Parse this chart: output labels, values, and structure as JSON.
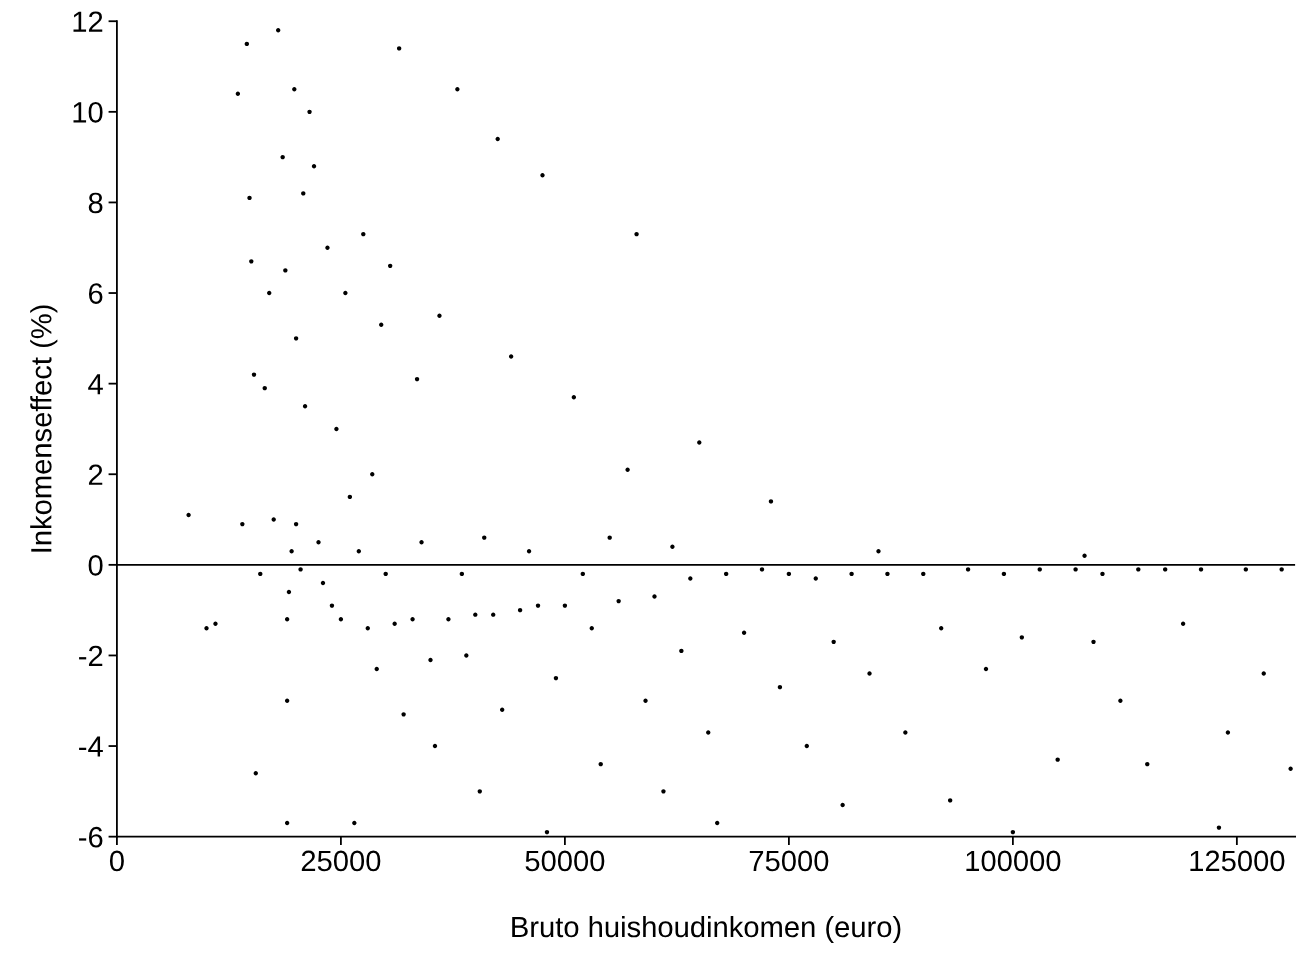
{
  "chart_data": {
    "type": "scatter",
    "xlabel": "Bruto huishoudinkomen (euro)",
    "ylabel": "Inkomenseffect (%)",
    "xlim": [
      0,
      131500
    ],
    "ylim": [
      -6,
      12
    ],
    "xticks": [
      0,
      25000,
      50000,
      75000,
      100000,
      125000
    ],
    "yticks": [
      -6,
      -4,
      -2,
      0,
      2,
      4,
      6,
      8,
      10,
      12
    ],
    "grid": false,
    "legend": false,
    "ref_lines": [
      {
        "axis": "y",
        "value": 0,
        "color": "#000000",
        "line_style": "solid"
      }
    ],
    "series": [
      {
        "color": "#000000",
        "x": [
          8000,
          10000,
          11000,
          13500,
          14000,
          14500,
          14800,
          15000,
          15300,
          15500,
          16000,
          16500,
          17000,
          17500,
          18000,
          18500,
          18800,
          19000,
          19000,
          19000,
          19200,
          19500,
          19800,
          20000,
          20000,
          20500,
          20800,
          21000,
          21500,
          22000,
          22500,
          23000,
          23500,
          24000,
          24500,
          25000,
          25500,
          26000,
          26500,
          27000,
          27500,
          28000,
          28500,
          29000,
          29500,
          30000,
          30500,
          31000,
          31500,
          32000,
          33000,
          33500,
          34000,
          35000,
          35500,
          36000,
          37000,
          38000,
          38500,
          39000,
          40000,
          40500,
          41000,
          42000,
          42500,
          43000,
          44000,
          45000,
          46000,
          47000,
          47500,
          48000,
          49000,
          50000,
          51000,
          52000,
          53000,
          54000,
          55000,
          56000,
          57000,
          58000,
          59000,
          60000,
          61000,
          62000,
          63000,
          64000,
          65000,
          66000,
          67000,
          68000,
          70000,
          72000,
          73000,
          74000,
          75000,
          77000,
          78000,
          80000,
          81000,
          82000,
          84000,
          85000,
          86000,
          88000,
          90000,
          92000,
          93000,
          95000,
          97000,
          99000,
          100000,
          101000,
          103000,
          105000,
          107000,
          108000,
          109000,
          110000,
          112000,
          114000,
          115000,
          117000,
          119000,
          121000,
          123000,
          124000,
          126000,
          128000,
          130000,
          131000
        ],
        "values": [
          1.1,
          -1.4,
          -1.3,
          10.4,
          0.9,
          11.5,
          8.1,
          6.7,
          4.2,
          -4.6,
          -0.2,
          3.9,
          6.0,
          1.0,
          11.8,
          9.0,
          6.5,
          -1.2,
          -3.0,
          -5.7,
          -0.6,
          0.3,
          10.5,
          5.0,
          0.9,
          -0.1,
          8.2,
          3.5,
          10.0,
          8.8,
          0.5,
          -0.4,
          7.0,
          -0.9,
          3.0,
          -1.2,
          6.0,
          1.5,
          -5.7,
          0.3,
          7.3,
          -1.4,
          2.0,
          -2.3,
          5.3,
          -0.2,
          6.6,
          -1.3,
          11.4,
          -3.3,
          -1.2,
          4.1,
          0.5,
          -2.1,
          -4.0,
          5.5,
          -1.2,
          10.5,
          -0.2,
          -2.0,
          -1.1,
          -5.0,
          0.6,
          -1.1,
          9.4,
          -3.2,
          4.6,
          -1.0,
          0.3,
          -0.9,
          8.6,
          -5.9,
          -2.5,
          -0.9,
          3.7,
          -0.2,
          -1.4,
          -4.4,
          0.6,
          -0.8,
          2.1,
          7.3,
          -3.0,
          -0.7,
          -5.0,
          0.4,
          -1.9,
          -0.3,
          2.7,
          -3.7,
          -5.7,
          -0.2,
          -1.5,
          -0.1,
          1.4,
          -2.7,
          -0.2,
          -4.0,
          -0.3,
          -1.7,
          -5.3,
          -0.2,
          -2.4,
          0.3,
          -0.2,
          -3.7,
          -0.2,
          -1.4,
          -5.2,
          -0.1,
          -2.3,
          -0.2,
          -5.9,
          -1.6,
          -0.1,
          -4.3,
          -0.1,
          0.2,
          -1.7,
          -0.2,
          -3.0,
          -0.1,
          -4.4,
          -0.1,
          -1.3,
          -0.1,
          -5.8,
          -3.7,
          -0.1,
          -2.4,
          -0.1,
          -4.5
        ]
      }
    ]
  }
}
